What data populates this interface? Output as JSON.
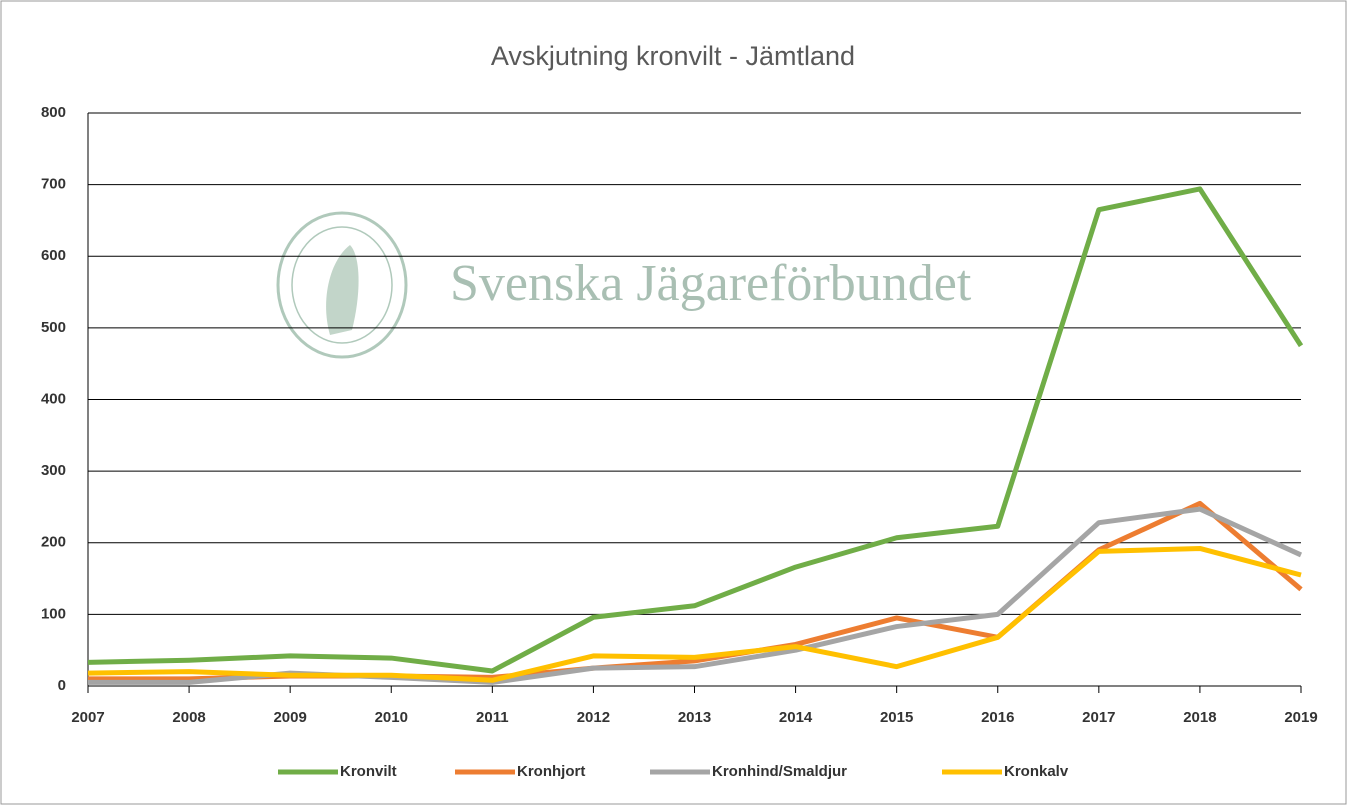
{
  "chart_data": {
    "type": "line",
    "title": "Avskjutning kronvilt - Jämtland",
    "watermark": "Svenska Jägareförbundet",
    "categories": [
      "2007",
      "2008",
      "2009",
      "2010",
      "2011",
      "2012",
      "2013",
      "2014",
      "2015",
      "2016",
      "2017",
      "2018",
      "2019"
    ],
    "series": [
      {
        "name": "Kronvilt",
        "color": "#70ad47",
        "values": [
          33,
          36,
          42,
          39,
          21,
          96,
          112,
          166,
          207,
          223,
          665,
          694,
          475
        ]
      },
      {
        "name": "Kronhjort",
        "color": "#ed7d31",
        "values": [
          10,
          10,
          14,
          14,
          12,
          25,
          35,
          58,
          95,
          68,
          190,
          255,
          135
        ]
      },
      {
        "name": "Kronhind/Smaldjur",
        "color": "#a5a5a5",
        "values": [
          5,
          5,
          18,
          12,
          5,
          25,
          27,
          50,
          83,
          100,
          228,
          247,
          183
        ]
      },
      {
        "name": "Kronkalv",
        "color": "#ffc000",
        "values": [
          18,
          20,
          15,
          15,
          8,
          42,
          40,
          55,
          27,
          68,
          188,
          192,
          155
        ]
      }
    ],
    "ylim": [
      0,
      800
    ],
    "yticks": [
      0,
      100,
      200,
      300,
      400,
      500,
      600,
      700,
      800
    ],
    "grid": true,
    "legend": "bottom"
  }
}
